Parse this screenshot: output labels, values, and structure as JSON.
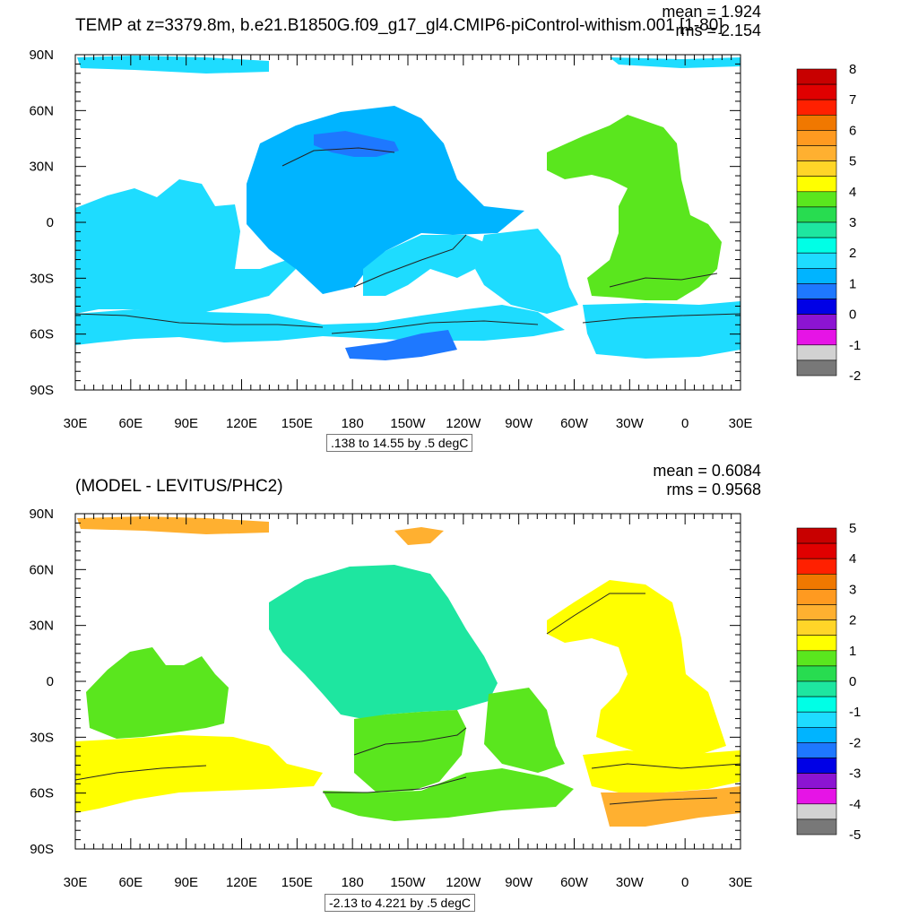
{
  "lon_labels": [
    "30E",
    "60E",
    "90E",
    "120E",
    "150E",
    "180",
    "150W",
    "120W",
    "90W",
    "60W",
    "30W",
    "0",
    "30E"
  ],
  "lat_labels": [
    "90N",
    "60N",
    "30N",
    "0",
    "30S",
    "60S",
    "90S"
  ],
  "panels": [
    {
      "id": "top",
      "title": "TEMP at z=3379.8m, b.e21.B1850G.f09_g17_gl4.CMIP6-piControl-withism.001 [1-80]",
      "mean": "mean = 1.924",
      "rms": "rms = 2.154",
      "contour_info": ".138 to 14.55 by .5 degC",
      "colorbar_labels": [
        "8",
        "7",
        "6",
        "5",
        "4",
        "3",
        "2",
        "1",
        "0",
        "-1",
        "-2"
      ],
      "colorbar_colors": [
        "#c80000",
        "#e00000",
        "#ff2000",
        "#f07800",
        "#ff9a20",
        "#ffb030",
        "#ffd528",
        "#ffff00",
        "#5ae61e",
        "#28dc50",
        "#1ee6a0",
        "#00ffe6",
        "#1edcff",
        "#00b4ff",
        "#1e78ff",
        "#0000e6",
        "#8c14d2",
        "#e614e6",
        "#d2d2d2",
        "#787878"
      ],
      "regions": [
        {
          "name": "indian-ocean",
          "color": "#1edcff"
        },
        {
          "name": "north-pacific",
          "color": "#00b4ff"
        },
        {
          "name": "north-pacific-deep",
          "color": "#1e78ff"
        },
        {
          "name": "south-pacific",
          "color": "#1edcff"
        },
        {
          "name": "southern-ocean",
          "color": "#1edcff"
        },
        {
          "name": "antarctic-shelf",
          "color": "#1e78ff"
        },
        {
          "name": "atlantic",
          "color": "#5ae61e"
        },
        {
          "name": "arctic",
          "color": "#1edcff"
        }
      ]
    },
    {
      "id": "bottom",
      "title": "(MODEL - LEVITUS/PHC2)",
      "mean": "mean = 0.6084",
      "rms": "rms = 0.9568",
      "contour_info": "-2.13 to 4.221 by .5 degC",
      "colorbar_labels": [
        "5",
        "4",
        "3",
        "2",
        "1",
        "0",
        "-1",
        "-2",
        "-3",
        "-4",
        "-5"
      ],
      "colorbar_colors": [
        "#c80000",
        "#e00000",
        "#ff2000",
        "#f07800",
        "#ff9a20",
        "#ffb030",
        "#ffd528",
        "#ffff00",
        "#5ae61e",
        "#28dc50",
        "#1ee6a0",
        "#00ffe6",
        "#1edcff",
        "#00b4ff",
        "#1e78ff",
        "#0000e6",
        "#8c14d2",
        "#e614e6",
        "#d2d2d2",
        "#787878"
      ],
      "regions": [
        {
          "name": "indian-ocean",
          "color": "#5ae61e"
        },
        {
          "name": "north-pacific",
          "color": "#1ee6a0"
        },
        {
          "name": "north-pacific-deep",
          "color": "#1ee6a0"
        },
        {
          "name": "south-pacific",
          "color": "#5ae61e"
        },
        {
          "name": "southern-ocean",
          "color": "#ffff00"
        },
        {
          "name": "antarctic-shelf",
          "color": "#5ae61e"
        },
        {
          "name": "atlantic",
          "color": "#ffff00"
        },
        {
          "name": "arctic",
          "color": "#ffb030"
        }
      ]
    }
  ]
}
